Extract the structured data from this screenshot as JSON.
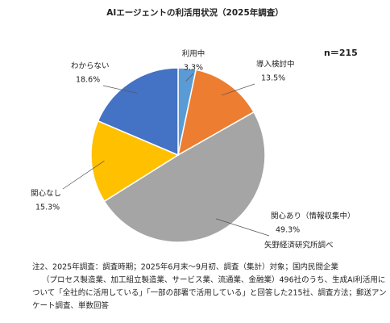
{
  "chart_data": {
    "type": "pie",
    "title": "AIエージェントの利活用状況（2025年調査）",
    "annotation": "n＝215",
    "categories": [
      "利用中",
      "導入検討中",
      "関心あり（情報収集中）",
      "関心なし",
      "わからない"
    ],
    "values": [
      3.3,
      13.5,
      49.3,
      15.3,
      18.6
    ],
    "value_labels": [
      "3.3%",
      "13.5%",
      "49.3%",
      "15.3%",
      "18.6%"
    ],
    "colors": [
      "#5b9bd5",
      "#ed7d31",
      "#a5a5a5",
      "#ffc000",
      "#4472c4"
    ],
    "source": "矢野経済研究所調べ",
    "notes": [
      "注2、2025年調査：調査時期；2025年6月末～9月初、調査（集計）対象；国内民間企業",
      "（プロセス製造業、加工組立製造業、サービス業、流通業、金融業）496社のうち、生成AI利活用に",
      "ついて「全社的に活用している」「一部の部署で活用している」と回答した215社、調査方法；郵送アン",
      "ケート調査、単数回答"
    ]
  }
}
